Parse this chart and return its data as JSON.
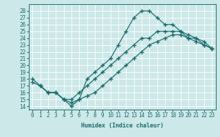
{
  "xlabel": "Humidex (Indice chaleur)",
  "bg_color": "#cce8e8",
  "grid_color": "#ffffff",
  "line_color": "#1a6b6b",
  "xlim": [
    -0.5,
    23.5
  ],
  "ylim": [
    13.5,
    29.0
  ],
  "xticks": [
    0,
    1,
    2,
    3,
    4,
    5,
    6,
    7,
    8,
    9,
    10,
    11,
    12,
    13,
    14,
    15,
    16,
    17,
    18,
    19,
    20,
    21,
    22,
    23
  ],
  "yticks": [
    14,
    15,
    16,
    17,
    18,
    19,
    20,
    21,
    22,
    23,
    24,
    25,
    26,
    27,
    28
  ],
  "line1_x": [
    0,
    1,
    2,
    3,
    4,
    5,
    6,
    7,
    8,
    9,
    10,
    11,
    12,
    13,
    14,
    15,
    16,
    17,
    18,
    19,
    20,
    21,
    22,
    23
  ],
  "line1_y": [
    18,
    17,
    16,
    16,
    15,
    14,
    15,
    18,
    19,
    20,
    21,
    23,
    25,
    27,
    28,
    28,
    27,
    26,
    26,
    25,
    24,
    24,
    23,
    22.5
  ],
  "line2_x": [
    0,
    1,
    2,
    3,
    4,
    5,
    6,
    7,
    8,
    9,
    10,
    11,
    12,
    13,
    14,
    15,
    16,
    17,
    18,
    19,
    20,
    21,
    22,
    23
  ],
  "line2_y": [
    17.5,
    17,
    16,
    16,
    15,
    15,
    16,
    17,
    18,
    19,
    20,
    21,
    22,
    23,
    24,
    24,
    25,
    25,
    25,
    25,
    24.5,
    24,
    23.5,
    22.5
  ],
  "line3_x": [
    1,
    2,
    3,
    4,
    5,
    6,
    7,
    8,
    9,
    10,
    11,
    12,
    13,
    14,
    15,
    16,
    17,
    18,
    19,
    20,
    21,
    22,
    23
  ],
  "line3_y": [
    17,
    16,
    16,
    15,
    14.5,
    15,
    15.5,
    16,
    17,
    18,
    19,
    20,
    21,
    22,
    23,
    23.5,
    24,
    24.5,
    24.5,
    24,
    23.5,
    23,
    22.5
  ]
}
